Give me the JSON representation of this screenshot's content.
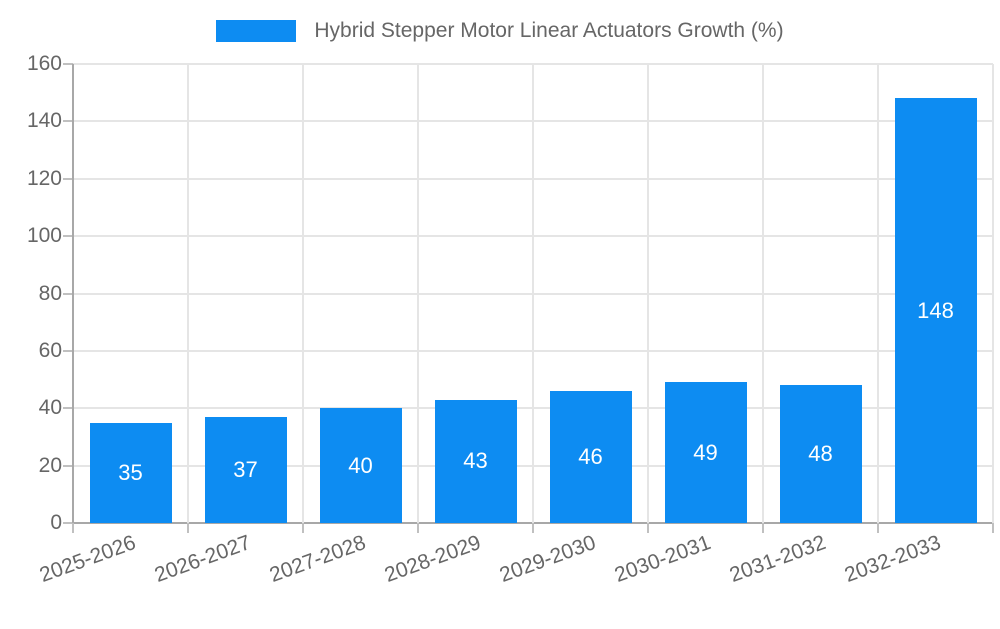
{
  "legend": {
    "label": "Hybrid Stepper Motor Linear Actuators Growth (%)"
  },
  "chart_data": {
    "type": "bar",
    "title": "Hybrid Stepper Motor Linear Actuators Growth (%)",
    "categories": [
      "2025-2026",
      "2026-2027",
      "2027-2028",
      "2028-2029",
      "2029-2030",
      "2030-2031",
      "2031-2032",
      "2032-2033"
    ],
    "values": [
      35,
      37,
      40,
      43,
      46,
      49,
      48,
      148
    ],
    "value_labels": [
      "35",
      "37",
      "40",
      "43",
      "46",
      "49",
      "48",
      "148"
    ],
    "yticks": [
      0,
      20,
      40,
      60,
      80,
      100,
      120,
      140,
      160
    ],
    "ylim": [
      0,
      160
    ],
    "xlabel": "",
    "ylabel": "",
    "grid": true,
    "legend_position": "top",
    "x_label_rotation_deg": -20
  },
  "colors": {
    "bar": "#0d8cf2",
    "grid": "#e5e5e5",
    "axis": "#a8a8a8",
    "tick": "#c0c0c0",
    "text": "#666666",
    "value_label": "#ffffff",
    "background": "#ffffff"
  }
}
